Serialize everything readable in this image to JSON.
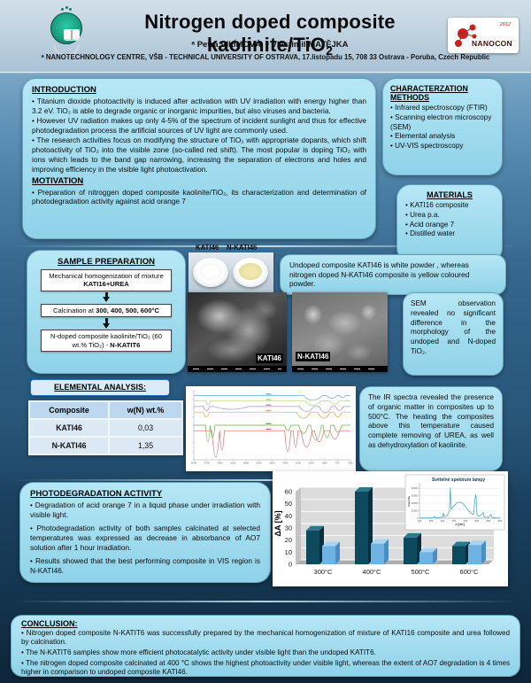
{
  "header": {
    "title_main": "Nitrogen doped composite kaolinite/TiO",
    "title_sub": "2",
    "authors": "ᵃ Petra VILÍMOVÁ, ᵃ Vlastimil MATĚJKA",
    "affiliation": "ᵃ NANOTECHNOLOGY CENTRE, VŠB - TECHNICAL UNIVERSITY OF OSTRAVA, 17.listopadu 15, 708 33 Ostrava - Poruba, Czech Republic",
    "logo_right": {
      "brand": "NANOCON",
      "year": "2012"
    }
  },
  "introduction": {
    "heading": "INTRODUCTION",
    "bullets": [
      "Titanium dioxide photoactivity is induced after activation with UV irradiation with energy higher than 3.2 eV. TiO₂ is able to degrade organic or inorganic impurities, but also viruses and bacteria.",
      "However UV radiation makes up only 4-5% of the spectrum of incident sunlight and thus for effective photodegradation process the artificial sources of UV light are commonly used.",
      "The research activities focus on modifying the structure of TiO₂ with appropriate dopants, which shift photoactivity of TiO₂ into the visible zone (so-called red shift). The most popular is doping TiO₂ with ions which leads to the band gap narrowing, increasing the separation of electrons and holes and improving efficiency in the visible light photoactivation."
    ],
    "motivation_heading": "MOTIVATION",
    "motivation_bullets": [
      "Preparation of nitroggen doped composite kaolinite/TiO₂, its characterization and determination of photodegradation activity against acid orange 7"
    ]
  },
  "characterization": {
    "heading": "CHARACTERZATION METHODS",
    "items": [
      "Infrared spectroscopy (FTIR)",
      "Scanning electron microscopy (SEM)",
      "Elemental analysis",
      "UV-VIS spectroscopy"
    ]
  },
  "materials": {
    "heading": "MATERIALS",
    "items": [
      "KATI16 composite",
      "Urea p.a.",
      "Acid orange 7",
      "Distilled water"
    ]
  },
  "sample_preparation": {
    "heading": "SAMPLE PREPARATION",
    "steps": [
      {
        "text": "Mechanical homogenization of mixture ",
        "bold": "KATI16+UREA"
      },
      {
        "text": "Calcination at ",
        "bold": "300, 400, 500, 600°C"
      },
      {
        "text": "N-doped composite kaolinite/TiO₂ (60 wt.% TiO₂) - ",
        "bold": "N-KATIT6"
      }
    ]
  },
  "elemental_analysis": {
    "heading": "ELEMENTAL ANALYSIS:",
    "columns": [
      "Composite",
      "w(N) wt.%"
    ],
    "rows": [
      [
        "KATI46",
        "0,03"
      ],
      [
        "N-KATI46",
        "1,35"
      ]
    ]
  },
  "samples": {
    "photo_labels": [
      "KATI46",
      "N-KATI46"
    ],
    "sem_labels": [
      "KATI46",
      "N-KATI46"
    ],
    "powder_note": "Undoped composite KATI46 is white powder , whereas nitrogen doped N-KATI46 composite is yellow coloured powder.",
    "sem_note": "SEM observation revealed no significant difference in the morphology of the undoped and N-doped TiO₂."
  },
  "ir_note": "The IR spectra revealed the presence of organic matter in composites up to 500°C. The heating the composites above this temperature caused complete removing of UREA, as well as dehydroxylation of kaolinite.",
  "photodegradation": {
    "heading": "PHOTODEGRADATION ACTIVITY",
    "bullets": [
      "Degradation of acid orange 7 in a liquid phase under irradiation with visible light.",
      "Photodegradation activity of both samples calcinated at selected temperatures was expressed as decrease in absorbance of AO7 solution after 1 hour irradiation.",
      "Results showed that the best performing composite in VIS region is N-KATI46."
    ]
  },
  "conclusion": {
    "heading": "CONCLUSION:",
    "bullets": [
      "Nitrogen doped composite N-KATIT6 was successfully prepared by the mechanical homogenization of mixture of KATI16 composite and urea followed by calcination.",
      "The N-KATIT6 samples show more efficient photocatalytic activity under visible light than the undoped KATIT6.",
      "The nitrogen doped composite calcinated at 400 °C shows the highest photoactivity under visible light, whereas the extent of AO7 degradation is 4 times higher in comparison to undoped composite KATI46."
    ]
  },
  "chart_data": [
    {
      "type": "bar",
      "style": "3d",
      "title": "",
      "ylabel": "ΔA [%]",
      "categories": [
        "300°C",
        "400°C",
        "500°C",
        "600°C"
      ],
      "series": [
        {
          "name": "dark-teal-series",
          "color": "#0e4a5e",
          "top": "#2a7a8f",
          "side": "#082f3d",
          "values": [
            28,
            60,
            22,
            15
          ]
        },
        {
          "name": "light-blue-series",
          "color": "#6fb3e3",
          "top": "#a7d4f2",
          "side": "#4a8cc4",
          "values": [
            15,
            17,
            10,
            16
          ]
        }
      ],
      "ylim": [
        0,
        60
      ],
      "yticks": [
        0,
        10,
        20,
        30,
        40,
        50,
        60
      ],
      "legend": false,
      "grid": true
    },
    {
      "type": "line",
      "title": "Světelné spektrum lampy",
      "xlabel": "λ [nm]",
      "ylabel": "Intenzita",
      "xlim": [
        300,
        650
      ],
      "ylim": [
        0,
        45000
      ],
      "xticks": [
        300,
        350,
        400,
        450,
        500,
        550,
        600,
        650
      ],
      "yticks": [
        0,
        10000,
        20000,
        30000,
        40000
      ],
      "color": "#4bacc6",
      "points": [
        [
          300,
          300
        ],
        [
          330,
          350
        ],
        [
          360,
          500
        ],
        [
          365,
          2500
        ],
        [
          370,
          600
        ],
        [
          385,
          800
        ],
        [
          400,
          1500
        ],
        [
          404,
          7000
        ],
        [
          408,
          1800
        ],
        [
          420,
          3500
        ],
        [
          430,
          9000
        ],
        [
          434,
          41000
        ],
        [
          438,
          12000
        ],
        [
          445,
          15000
        ],
        [
          455,
          18500
        ],
        [
          465,
          21000
        ],
        [
          475,
          21500
        ],
        [
          485,
          20500
        ],
        [
          495,
          17500
        ],
        [
          505,
          13500
        ],
        [
          515,
          9500
        ],
        [
          525,
          6500
        ],
        [
          535,
          4800
        ],
        [
          543,
          31000
        ],
        [
          546,
          29000
        ],
        [
          550,
          3800
        ],
        [
          560,
          2600
        ],
        [
          577,
          7500
        ],
        [
          581,
          1700
        ],
        [
          600,
          1300
        ],
        [
          611,
          5200
        ],
        [
          616,
          900
        ],
        [
          635,
          600
        ],
        [
          650,
          450
        ]
      ]
    },
    {
      "type": "line-multi",
      "title": "FTIR spectra of composites",
      "x_axis_ticks": [
        "4000",
        "3700",
        "3400",
        "3100",
        "2800",
        "2500",
        "2200",
        "1900",
        "1600",
        "1300",
        "1000",
        "700",
        "400"
      ],
      "series": [
        {
          "name": "spectrum-1",
          "color": "#6aa9e0",
          "baseline": 7,
          "dips": [
            [
              76,
              7,
              12
            ],
            [
              88,
              4,
              7
            ],
            [
              95,
              3,
              4
            ]
          ]
        },
        {
          "name": "spectrum-2",
          "color": "#a9d18e",
          "baseline": 15,
          "dips": [
            [
              9,
              5,
              3
            ],
            [
              76,
              6,
              10
            ],
            [
              90,
              5,
              6
            ]
          ]
        },
        {
          "name": "spectrum-3",
          "color": "#b38cc4",
          "baseline": 23,
          "dips": [
            [
              8,
              6,
              4
            ],
            [
              24,
              4,
              22
            ],
            [
              72,
              7,
              9
            ],
            [
              84,
              9,
              8
            ],
            [
              93,
              6,
              5
            ]
          ]
        },
        {
          "name": "spectrum-4",
          "color": "#e8a33d",
          "baseline": 31,
          "dips": [
            [
              8,
              7,
              4
            ],
            [
              70,
              9,
              9
            ],
            [
              83,
              9,
              8
            ],
            [
              92,
              7,
              5
            ]
          ]
        },
        {
          "name": "spectrum-5",
          "color": "#70ad47",
          "baseline": 50,
          "dips": [
            [
              9,
              24,
              3
            ],
            [
              12,
              18,
              3
            ],
            [
              60,
              8,
              4
            ],
            [
              70,
              12,
              6
            ],
            [
              78,
              22,
              7
            ],
            [
              85,
              18,
              5
            ],
            [
              92,
              10,
              5
            ]
          ]
        },
        {
          "name": "spectrum-6",
          "color": "#e06666",
          "baseline": 58,
          "dips": [
            [
              14,
              38,
              5
            ],
            [
              18,
              28,
              3
            ],
            [
              60,
              30,
              4
            ],
            [
              65,
              24,
              3
            ],
            [
              72,
              24,
              7
            ],
            [
              80,
              16,
              6
            ],
            [
              90,
              12,
              6
            ]
          ]
        }
      ]
    }
  ],
  "colors": {
    "box_fill": "#9fdcef",
    "bar_dark": "#0e4a5e",
    "bar_light": "#6fb3e3",
    "accent_red": "#c0261f"
  }
}
